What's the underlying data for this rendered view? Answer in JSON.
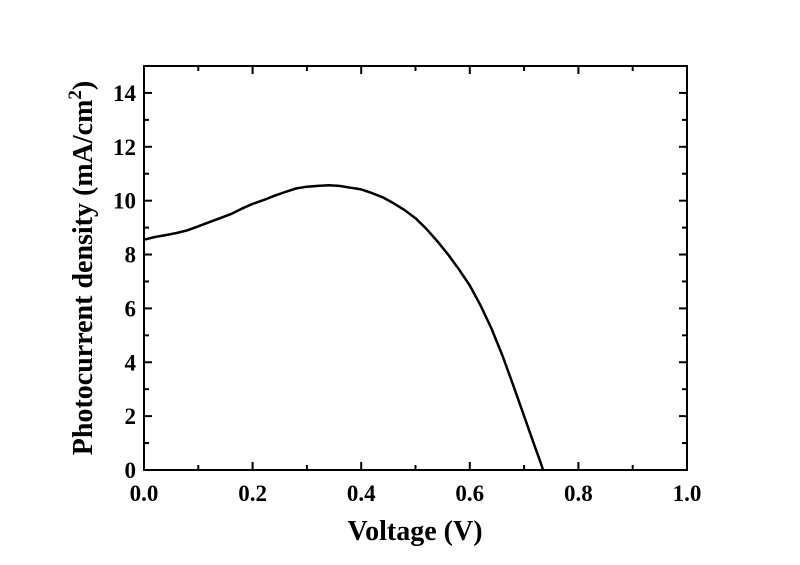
{
  "chart_data": {
    "type": "line",
    "title": "",
    "xlabel": "Voltage (V)",
    "ylabel": "Photocurrent density (mA/cm",
    "ylabel_superscript": "2",
    "ylabel_close": ")",
    "xlim": [
      0.0,
      1.0
    ],
    "ylim": [
      0,
      15
    ],
    "x_ticks": [
      0.0,
      0.2,
      0.4,
      0.6,
      0.8,
      1.0
    ],
    "x_tick_labels": [
      "0.0",
      "0.2",
      "0.4",
      "0.6",
      "0.8",
      "1.0"
    ],
    "y_ticks": [
      0,
      2,
      4,
      6,
      8,
      10,
      12,
      14
    ],
    "y_tick_labels": [
      "0",
      "2",
      "4",
      "6",
      "8",
      "10",
      "12",
      "14"
    ],
    "grid": false,
    "series": [
      {
        "color": "#000000",
        "x": [
          0.0,
          0.02,
          0.04,
          0.06,
          0.08,
          0.1,
          0.12,
          0.14,
          0.16,
          0.18,
          0.2,
          0.22,
          0.24,
          0.26,
          0.28,
          0.3,
          0.32,
          0.34,
          0.36,
          0.38,
          0.4,
          0.42,
          0.44,
          0.46,
          0.48,
          0.5,
          0.52,
          0.54,
          0.56,
          0.58,
          0.6,
          0.62,
          0.64,
          0.66,
          0.68,
          0.7,
          0.72,
          0.73,
          0.735
        ],
        "y": [
          8.55,
          8.65,
          8.72,
          8.8,
          8.9,
          9.05,
          9.2,
          9.35,
          9.5,
          9.7,
          9.88,
          10.02,
          10.18,
          10.32,
          10.45,
          10.52,
          10.55,
          10.57,
          10.55,
          10.48,
          10.42,
          10.28,
          10.12,
          9.9,
          9.65,
          9.35,
          8.95,
          8.5,
          8.0,
          7.45,
          6.85,
          6.1,
          5.25,
          4.25,
          3.15,
          2.0,
          0.85,
          0.3,
          0.0
        ]
      }
    ]
  }
}
